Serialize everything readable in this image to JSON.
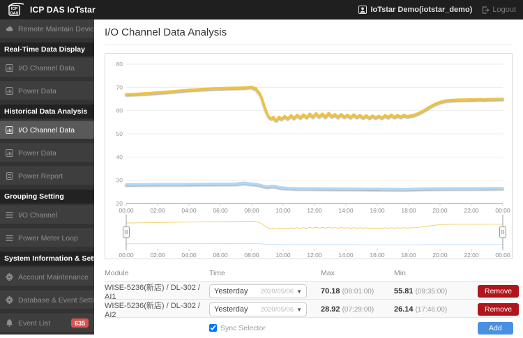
{
  "app": {
    "title": "ICP DAS IoTstar",
    "logo_text_top": "ICP",
    "logo_text_bottom": "DAS",
    "user": "IoTstar Demo(iotstar_demo)",
    "logout_label": "Logout"
  },
  "colors": {
    "series1": "#EDC240",
    "series2": "#AFD8F8",
    "badge": "#d9534f",
    "remove_btn": "#b0151c",
    "add_btn": "#4a90e2"
  },
  "sidebar": {
    "items": [
      {
        "type": "link",
        "icon": "cloud-icon",
        "label": "Remote Maintain Devices"
      },
      {
        "type": "section",
        "label": "Real-Time Data Display"
      },
      {
        "type": "link",
        "icon": "chart-icon",
        "label": "I/O Channel Data"
      },
      {
        "type": "link",
        "icon": "chart-icon",
        "label": "Power Data"
      },
      {
        "type": "section",
        "label": "Historical Data Analysis"
      },
      {
        "type": "link",
        "icon": "chart-icon",
        "label": "I/O Channel Data",
        "active": true
      },
      {
        "type": "link",
        "icon": "chart-icon",
        "label": "Power Data"
      },
      {
        "type": "link",
        "icon": "report-icon",
        "label": "Power Report"
      },
      {
        "type": "section",
        "label": "Grouping Setting"
      },
      {
        "type": "link",
        "icon": "list-icon",
        "label": "I/O Channel"
      },
      {
        "type": "link",
        "icon": "list-icon",
        "label": "Power Meter Loop"
      },
      {
        "type": "section",
        "label": "System Information & Setting"
      },
      {
        "type": "link",
        "icon": "gear-icon",
        "label": "Account Maintenance"
      },
      {
        "type": "link",
        "icon": "gear-icon",
        "label": "Database & Event Setting"
      },
      {
        "type": "link",
        "icon": "bell-icon",
        "label": "Event List",
        "badge": "635"
      }
    ]
  },
  "main": {
    "title": "I/O Channel Data Analysis"
  },
  "chart_data": {
    "type": "line",
    "title": "",
    "xlabel": "",
    "ylabel": "",
    "ylim": [
      20,
      80
    ],
    "y_ticks": [
      80,
      70,
      60,
      50,
      40,
      30,
      20
    ],
    "x_ticks": [
      "00:00",
      "02:00",
      "04:00",
      "06:00",
      "08:00",
      "10:00",
      "12:00",
      "14:00",
      "16:00",
      "18:00",
      "20:00",
      "22:00",
      "00:00"
    ],
    "x_range_hours": [
      0,
      24
    ],
    "grid": true,
    "legend": false,
    "navigator": true,
    "series": [
      {
        "name": "WISE-5236(新店) / DL-302 / AI1",
        "color": "#EDC240",
        "points": [
          [
            0,
            67.0
          ],
          [
            0.5,
            67.1
          ],
          [
            1,
            67.3
          ],
          [
            1.5,
            67.5
          ],
          [
            2,
            67.8
          ],
          [
            2.5,
            68.0
          ],
          [
            3,
            68.3
          ],
          [
            3.5,
            68.6
          ],
          [
            4,
            68.9
          ],
          [
            4.5,
            69.1
          ],
          [
            5,
            69.3
          ],
          [
            5.5,
            69.5
          ],
          [
            6,
            69.6
          ],
          [
            6.5,
            69.7
          ],
          [
            7,
            69.8
          ],
          [
            7.5,
            69.9
          ],
          [
            8.02,
            70.18
          ],
          [
            8.15,
            69.6
          ],
          [
            8.25,
            69.7
          ],
          [
            8.35,
            68.6
          ],
          [
            8.45,
            68.0
          ],
          [
            8.55,
            66.8
          ],
          [
            8.65,
            65.2
          ],
          [
            8.75,
            63.0
          ],
          [
            8.85,
            61.0
          ],
          [
            8.95,
            59.2
          ],
          [
            9.05,
            57.8
          ],
          [
            9.15,
            57.0
          ],
          [
            9.25,
            56.6
          ],
          [
            9.38,
            57.2
          ],
          [
            9.48,
            56.2
          ],
          [
            9.58,
            55.81
          ],
          [
            9.75,
            57.3
          ],
          [
            9.9,
            56.4
          ],
          [
            10.1,
            57.6
          ],
          [
            10.3,
            56.6
          ],
          [
            10.5,
            57.9
          ],
          [
            10.7,
            56.8
          ],
          [
            10.9,
            58.1
          ],
          [
            11.1,
            57.0
          ],
          [
            11.3,
            58.3
          ],
          [
            11.5,
            57.1
          ],
          [
            11.7,
            58.6
          ],
          [
            11.9,
            57.3
          ],
          [
            12.1,
            58.8
          ],
          [
            12.3,
            57.4
          ],
          [
            12.5,
            58.6
          ],
          [
            12.7,
            57.3
          ],
          [
            12.9,
            58.9
          ],
          [
            13.1,
            57.5
          ],
          [
            13.3,
            58.4
          ],
          [
            13.5,
            57.2
          ],
          [
            13.7,
            58.5
          ],
          [
            13.9,
            57.3
          ],
          [
            14.1,
            58.2
          ],
          [
            14.3,
            57.1
          ],
          [
            14.5,
            58.3
          ],
          [
            14.7,
            57.2
          ],
          [
            14.9,
            58.0
          ],
          [
            15.1,
            57.0
          ],
          [
            15.3,
            57.9
          ],
          [
            15.5,
            56.9
          ],
          [
            15.7,
            57.8
          ],
          [
            15.9,
            57.0
          ],
          [
            16.1,
            57.7
          ],
          [
            16.3,
            56.9
          ],
          [
            16.5,
            58.0
          ],
          [
            16.7,
            57.1
          ],
          [
            16.9,
            58.2
          ],
          [
            17.1,
            57.2
          ],
          [
            17.3,
            58.0
          ],
          [
            17.5,
            57.3
          ],
          [
            17.7,
            58.1
          ],
          [
            17.9,
            57.5
          ],
          [
            18.1,
            57.8
          ],
          [
            18.3,
            58.0
          ],
          [
            18.6,
            58.8
          ],
          [
            18.9,
            59.8
          ],
          [
            19.2,
            61.0
          ],
          [
            19.5,
            62.2
          ],
          [
            19.8,
            63.2
          ],
          [
            20.1,
            63.9
          ],
          [
            20.4,
            64.3
          ],
          [
            20.7,
            64.5
          ],
          [
            21,
            64.6
          ],
          [
            21.3,
            64.7
          ],
          [
            21.6,
            64.7
          ],
          [
            21.9,
            64.8
          ],
          [
            22.2,
            64.8
          ],
          [
            22.5,
            64.9
          ],
          [
            22.8,
            64.8
          ],
          [
            23.1,
            64.9
          ],
          [
            23.4,
            64.9
          ],
          [
            23.7,
            65.0
          ],
          [
            24,
            65.0
          ]
        ]
      },
      {
        "name": "WISE-5236(新店) / DL-302 / AI2",
        "color": "#AFD8F8",
        "points": [
          [
            0,
            28.2
          ],
          [
            1,
            28.25
          ],
          [
            2,
            28.3
          ],
          [
            3,
            28.3
          ],
          [
            4,
            28.35
          ],
          [
            5,
            28.4
          ],
          [
            6,
            28.45
          ],
          [
            7,
            28.5
          ],
          [
            7.48,
            28.92
          ],
          [
            8,
            28.5
          ],
          [
            8.3,
            28.3
          ],
          [
            8.6,
            27.9
          ],
          [
            8.8,
            27.5
          ],
          [
            9.0,
            27.3
          ],
          [
            9.2,
            27.5
          ],
          [
            9.4,
            27.6
          ],
          [
            9.6,
            27.3
          ],
          [
            9.8,
            27.0
          ],
          [
            10,
            26.8
          ],
          [
            10.5,
            26.6
          ],
          [
            11,
            26.5
          ],
          [
            12,
            26.45
          ],
          [
            13,
            26.4
          ],
          [
            14,
            26.35
          ],
          [
            15,
            26.3
          ],
          [
            16,
            26.25
          ],
          [
            17,
            26.2
          ],
          [
            17.77,
            26.14
          ],
          [
            18.5,
            26.3
          ],
          [
            19,
            26.4
          ],
          [
            20,
            26.45
          ],
          [
            21,
            26.5
          ],
          [
            22,
            26.5
          ],
          [
            23,
            26.55
          ],
          [
            24,
            26.6
          ]
        ]
      }
    ]
  },
  "table": {
    "headers": [
      "Module",
      "Time",
      "Max",
      "Min"
    ],
    "rows": [
      {
        "module": "WISE-5236(新店) / DL-302 / AI1",
        "time_selected": "Yesterday",
        "time_date": "2020/05/06",
        "max": "70.18",
        "max_time": "(08:01:00)",
        "min": "55.81",
        "min_time": "(09:35:00)",
        "remove_label": "Remove"
      },
      {
        "module": "WISE-5236(新店) / DL-302 / AI2",
        "time_selected": "Yesterday",
        "time_date": "2020/05/06",
        "max": "28.92",
        "max_time": "(07:29:00)",
        "min": "26.14",
        "min_time": "(17:46:00)",
        "remove_label": "Remove"
      }
    ],
    "sync_label": "Sync Selector",
    "sync_checked": true,
    "add_label": "Add"
  }
}
